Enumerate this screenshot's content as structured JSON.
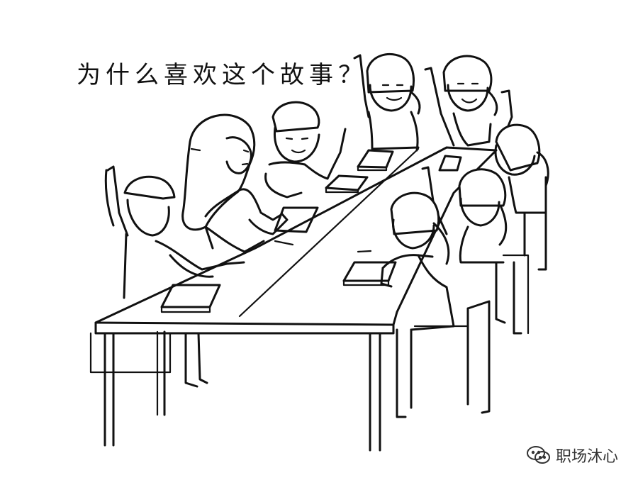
{
  "illustration": {
    "caption": "为什么喜欢这个故事？",
    "watermark": {
      "icon": "wechat-icon",
      "text": "职场沐心"
    }
  }
}
